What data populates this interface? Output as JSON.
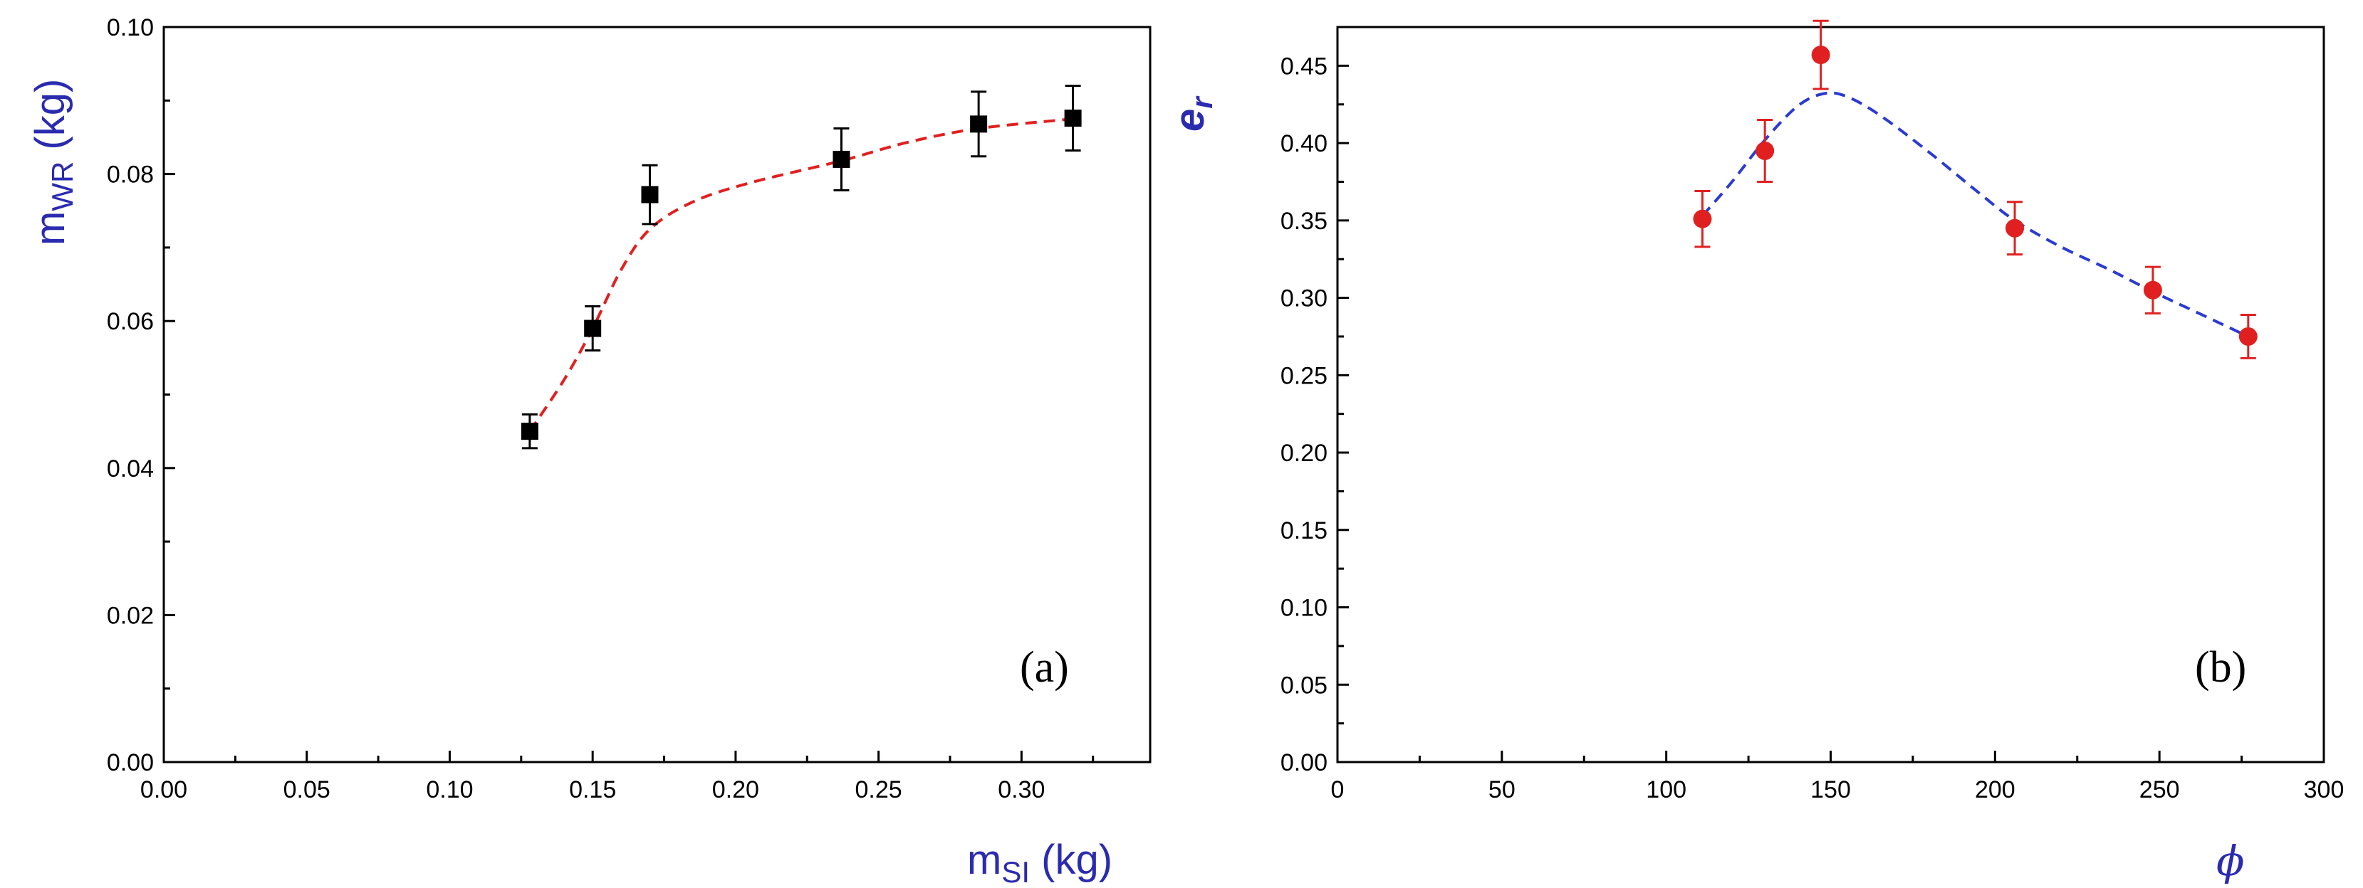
{
  "chart_data": [
    {
      "type": "scatter",
      "panel_label": "(a)",
      "xlabel": {
        "main": "m",
        "sub": "SI",
        "unit": " (kg)"
      },
      "ylabel": {
        "main": "m",
        "sub": "WR",
        "unit": " (kg)"
      },
      "xlim": [
        0,
        0.345
      ],
      "ylim": [
        0,
        0.1
      ],
      "xticks": [
        "0.00",
        "0.05",
        "0.10",
        "0.15",
        "0.20",
        "0.25",
        "0.30"
      ],
      "yticks": [
        "0.00",
        "0.02",
        "0.04",
        "0.06",
        "0.08",
        "0.10"
      ],
      "series": [
        {
          "marker": "square",
          "color": "#000000",
          "points": [
            {
              "x": 0.128,
              "y": 0.045,
              "err": 0.0023
            },
            {
              "x": 0.15,
              "y": 0.059,
              "err": 0.003
            },
            {
              "x": 0.17,
              "y": 0.0772,
              "err": 0.004
            },
            {
              "x": 0.237,
              "y": 0.082,
              "err": 0.0042
            },
            {
              "x": 0.285,
              "y": 0.0868,
              "err": 0.0044
            },
            {
              "x": 0.318,
              "y": 0.0876,
              "err": 0.0044
            }
          ]
        }
      ],
      "fit": {
        "style": "dashed",
        "color": "#e02020",
        "points": [
          [
            0.128,
            0.045
          ],
          [
            0.14,
            0.052
          ],
          [
            0.15,
            0.059
          ],
          [
            0.16,
            0.067
          ],
          [
            0.17,
            0.0725
          ],
          [
            0.185,
            0.0762
          ],
          [
            0.205,
            0.0788
          ],
          [
            0.237,
            0.0818
          ],
          [
            0.26,
            0.0843
          ],
          [
            0.285,
            0.0862
          ],
          [
            0.318,
            0.0875
          ]
        ]
      }
    },
    {
      "type": "scatter",
      "panel_label": "(b)",
      "xlabel": {
        "main": "ϕ",
        "sub": "",
        "unit": ""
      },
      "ylabel": {
        "main": "e",
        "sub": "r",
        "unit": ""
      },
      "xlim": [
        0,
        300
      ],
      "ylim": [
        0,
        0.475
      ],
      "xticks": [
        "0",
        "50",
        "100",
        "150",
        "200",
        "250",
        "300"
      ],
      "yticks": [
        "0.00",
        "0.05",
        "0.10",
        "0.15",
        "0.20",
        "0.25",
        "0.30",
        "0.35",
        "0.40",
        "0.45"
      ],
      "series": [
        {
          "marker": "circle",
          "color": "#e02020",
          "points": [
            {
              "x": 111,
              "y": 0.351,
              "err": 0.018
            },
            {
              "x": 130,
              "y": 0.395,
              "err": 0.02
            },
            {
              "x": 147,
              "y": 0.457,
              "err": 0.022
            },
            {
              "x": 206,
              "y": 0.345,
              "err": 0.017
            },
            {
              "x": 248,
              "y": 0.305,
              "err": 0.015
            },
            {
              "x": 277,
              "y": 0.275,
              "err": 0.014
            }
          ]
        }
      ],
      "fit": {
        "style": "dashed",
        "color": "#2b3bd0",
        "points": [
          [
            111,
            0.353
          ],
          [
            120,
            0.375
          ],
          [
            130,
            0.402
          ],
          [
            140,
            0.424
          ],
          [
            148,
            0.432
          ],
          [
            155,
            0.43
          ],
          [
            165,
            0.418
          ],
          [
            180,
            0.394
          ],
          [
            195,
            0.368
          ],
          [
            206,
            0.35
          ],
          [
            220,
            0.333
          ],
          [
            235,
            0.318
          ],
          [
            248,
            0.304
          ],
          [
            262,
            0.29
          ],
          [
            277,
            0.275
          ]
        ]
      }
    }
  ]
}
